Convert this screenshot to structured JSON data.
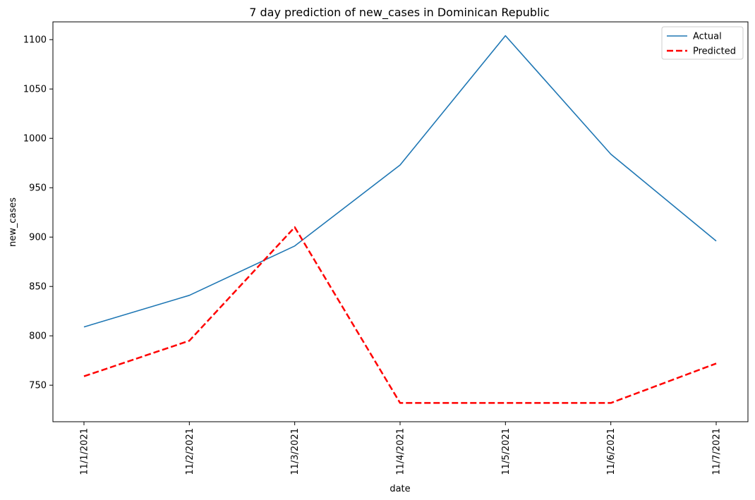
{
  "chart_data": {
    "type": "line",
    "title": "7 day prediction of new_cases in Dominican Republic",
    "xlabel": "date",
    "ylabel": "new_cases",
    "categories": [
      "11/1/2021",
      "11/2/2021",
      "11/3/2021",
      "11/4/2021",
      "11/5/2021",
      "11/6/2021",
      "11/7/2021"
    ],
    "yticks": [
      750,
      800,
      850,
      900,
      950,
      1000,
      1050,
      1100
    ],
    "ylim": [
      713,
      1118
    ],
    "grid": false,
    "legend_position": "top-right",
    "series": [
      {
        "name": "Actual",
        "color": "#1f77b4",
        "style": "solid",
        "values": [
          809,
          841,
          891,
          973,
          1104,
          984,
          896
        ]
      },
      {
        "name": "Predicted",
        "color": "#ff0000",
        "style": "dashed",
        "values": [
          759,
          795,
          910,
          732,
          732,
          732,
          772
        ]
      }
    ]
  }
}
